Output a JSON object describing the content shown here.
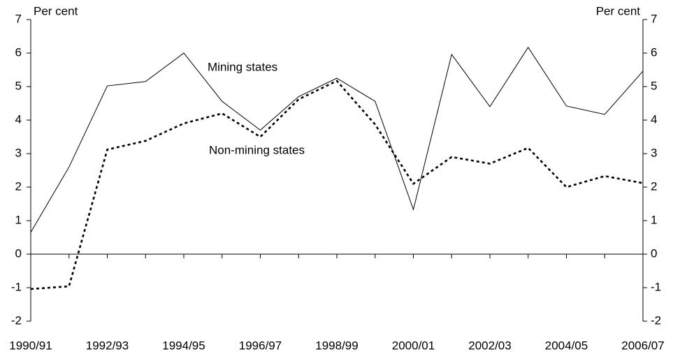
{
  "chart_data": {
    "type": "line",
    "y_label": "Per cent",
    "y2_label": "Per cent",
    "categories": [
      "1990/91",
      null,
      "1992/93",
      null,
      "1994/95",
      null,
      "1996/97",
      null,
      "1998/99",
      null,
      "2000/01",
      null,
      "2002/03",
      null,
      "2004/05",
      null,
      "2006/07"
    ],
    "series": [
      {
        "name": "Mining states",
        "color": "#000000",
        "style": "solid",
        "values": [
          0.65,
          2.6,
          5.02,
          5.15,
          6.0,
          4.56,
          3.7,
          4.7,
          5.25,
          4.56,
          1.33,
          5.96,
          4.4,
          6.17,
          4.42,
          4.17,
          5.46
        ]
      },
      {
        "name": "Non-mining states",
        "color": "#000000",
        "style": "dotted",
        "values": [
          -1.04,
          -0.96,
          3.12,
          3.38,
          3.9,
          4.2,
          3.5,
          4.62,
          5.17,
          3.87,
          2.1,
          2.9,
          2.7,
          3.17,
          2.0,
          2.33,
          2.12
        ]
      }
    ],
    "ylim": [
      -2,
      7
    ],
    "yticks": [
      -2,
      -1,
      0,
      1,
      2,
      3,
      4,
      5,
      6,
      7
    ],
    "y2lim": [
      -2,
      7
    ],
    "y2ticks": [
      -2,
      -1,
      0,
      1,
      2,
      3,
      4,
      5,
      6,
      7
    ],
    "grid": false
  }
}
